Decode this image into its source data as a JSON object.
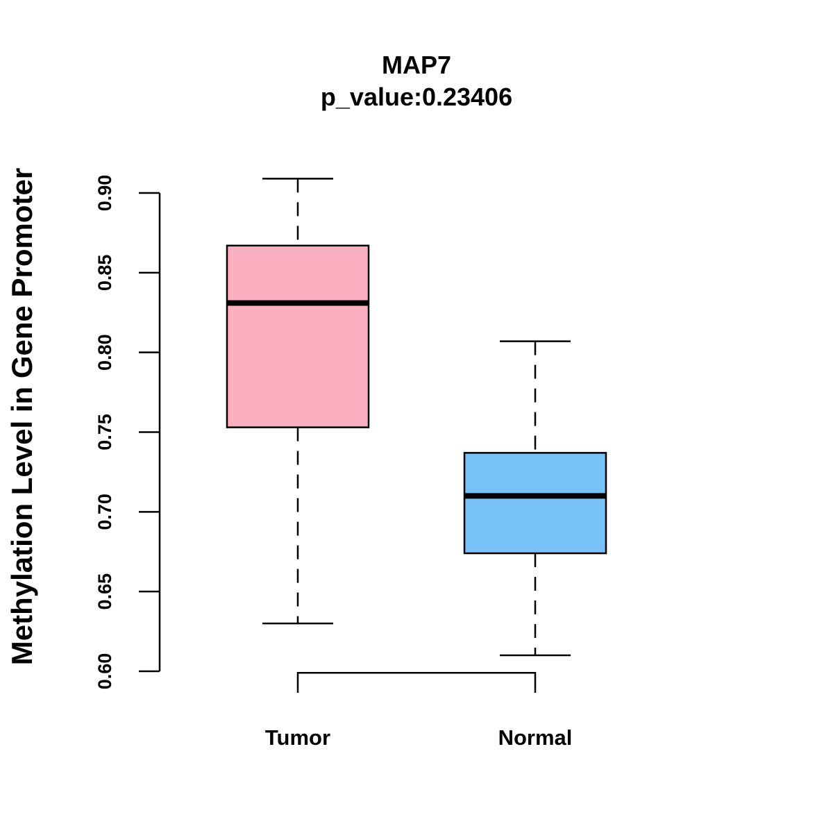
{
  "chart_data": {
    "type": "box",
    "title": "MAP7",
    "subtitle": "p_value:0.23406",
    "xlabel": "",
    "ylabel": "Methylation Level in Gene Promoter",
    "ylim": [
      0.6,
      0.9
    ],
    "yticks": [
      0.6,
      0.65,
      0.7,
      0.75,
      0.8,
      0.85,
      0.9
    ],
    "ytick_labels": [
      "0.60",
      "0.65",
      "0.70",
      "0.75",
      "0.80",
      "0.85",
      "0.90"
    ],
    "categories": [
      "Tumor",
      "Normal"
    ],
    "boxes": [
      {
        "name": "Tumor",
        "whisker_low": 0.63,
        "q1": 0.753,
        "median": 0.831,
        "q3": 0.867,
        "whisker_high": 0.909,
        "color": "#FBB0C2"
      },
      {
        "name": "Normal",
        "whisker_low": 0.61,
        "q1": 0.674,
        "median": 0.71,
        "q3": 0.737,
        "whisker_high": 0.807,
        "color": "#78C1F8"
      }
    ],
    "comparison_bracket": {
      "from": "Tumor",
      "to": "Normal",
      "y": 0.599
    },
    "grid": false,
    "legend": "none"
  }
}
